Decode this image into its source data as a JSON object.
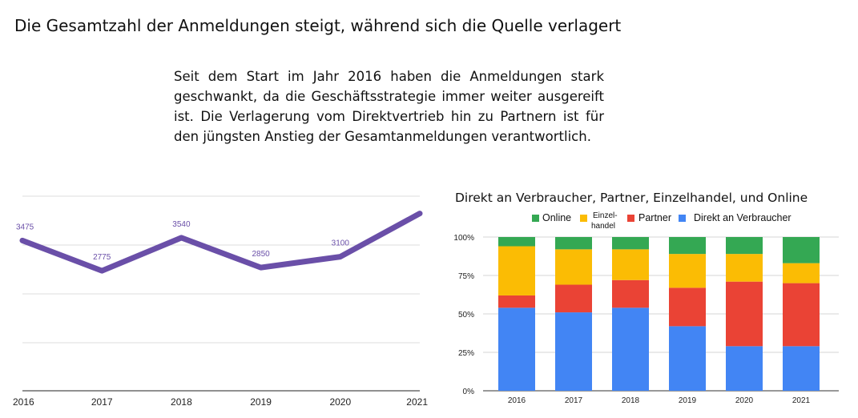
{
  "title": "Die Gesamtzahl der Anmeldungen steigt, während sich die Quelle verlagert",
  "description": "Seit dem Start im Jahr 2016 haben die Anmeldungen stark geschwankt, da die Geschäftsstrategie immer weiter ausgereift ist. Die Verlagerung vom Direktvertrieb hin zu Partnern ist für den jüngsten Anstieg der Gesamtanmeldungen verantwortlich.",
  "colors": {
    "line": "#6a4fa8",
    "online": "#34a853",
    "einzelhandel": "#fbbc04",
    "partner": "#ea4335",
    "direkt": "#4285f4"
  },
  "chart_data": [
    {
      "type": "line",
      "x": [
        "2016",
        "2017",
        "2018",
        "2019",
        "2020",
        "2021"
      ],
      "series": [
        {
          "values": [
            3475,
            2775,
            3540,
            2850,
            3100,
            4100
          ]
        }
      ],
      "data_labels": [
        "3475",
        "2775",
        "3540",
        "2850",
        "3100",
        ""
      ],
      "ylim": [
        0,
        4500
      ],
      "grid": true
    },
    {
      "type": "bar",
      "stacked": true,
      "percent": true,
      "title": "Direkt an Verbraucher, Partner, Einzelhandel, und Online",
      "categories": [
        "2016",
        "2017",
        "2018",
        "2019",
        "2020",
        "2021"
      ],
      "y_ticks": [
        "0%",
        "25%",
        "50%",
        "75%",
        "100%"
      ],
      "ylim": [
        0,
        100
      ],
      "legend_position": "top",
      "series": [
        {
          "name": "Direkt an Verbraucher",
          "values": [
            54,
            51,
            54,
            42,
            29,
            29
          ]
        },
        {
          "name": "Partner",
          "values": [
            8,
            18,
            18,
            25,
            42,
            41
          ]
        },
        {
          "name": "Einzelhandel",
          "values": [
            32,
            23,
            20,
            22,
            18,
            13
          ]
        },
        {
          "name": "Online",
          "values": [
            6,
            8,
            8,
            11,
            11,
            17
          ]
        }
      ],
      "legend": [
        {
          "label": "Online",
          "color": "#34a853"
        },
        {
          "label": "Einzel-\nhandel",
          "color": "#fbbc04"
        },
        {
          "label": "Partner",
          "color": "#ea4335"
        },
        {
          "label": "Direkt an Verbraucher",
          "color": "#4285f4"
        }
      ]
    }
  ]
}
